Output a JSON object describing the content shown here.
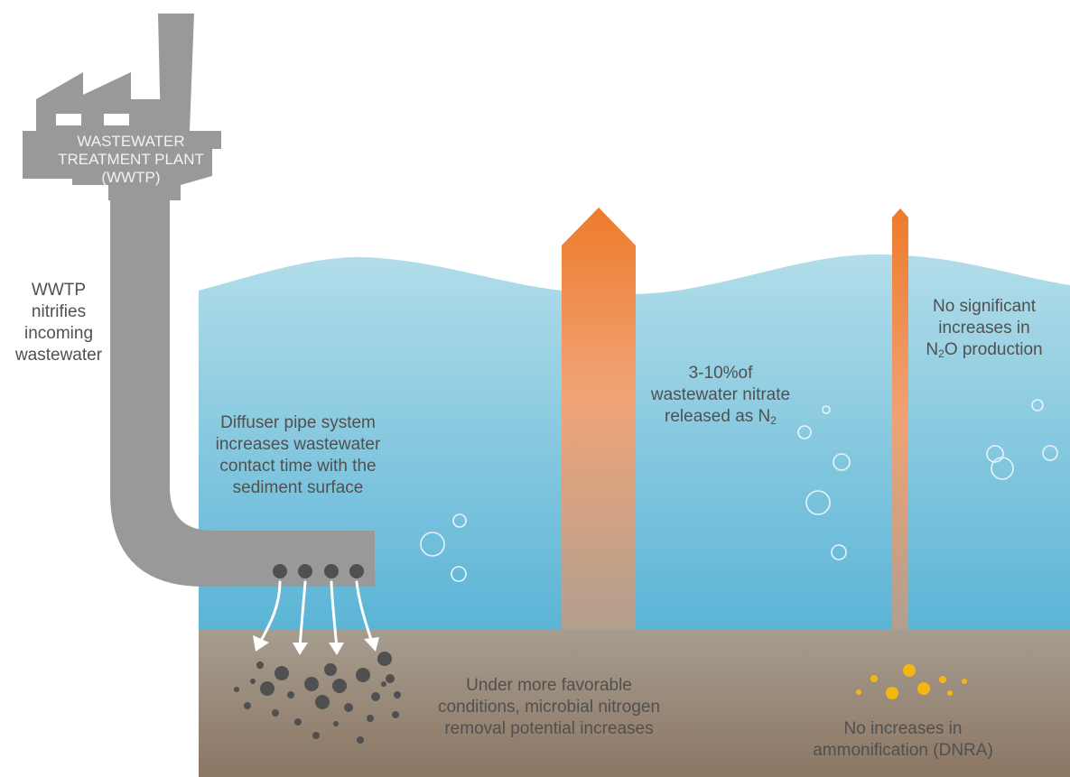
{
  "plant": {
    "lines": [
      "WASTEWATER",
      "TREATMENT PLANT",
      "(WWTP)"
    ]
  },
  "wwtp_note": {
    "lines": [
      "WWTP",
      "nitrifies",
      "incoming",
      "wastewater"
    ]
  },
  "diffuser_note": {
    "lines": [
      "Diffuser pipe system",
      "increases wastewater",
      "contact time with the",
      "sediment surface"
    ]
  },
  "n2_note": {
    "line1": "3-10%of",
    "line2": "wastewater nitrate",
    "line3_prefix": "released as N",
    "line3_sub": "2"
  },
  "n2o_note": {
    "line1": "No significant",
    "line2": "increases in",
    "line3_prefix": "N",
    "line3_sub": "2",
    "line3_suffix": "O production"
  },
  "sediment_note": {
    "lines": [
      "Under more favorable",
      "conditions, microbial nitrogen",
      "removal potential increases"
    ]
  },
  "dnra_note": {
    "lines": [
      "No increases in",
      "ammonification (DNRA)"
    ]
  },
  "colors": {
    "water_top": "#a9d9e8",
    "water_bottom": "#5fb5d6",
    "sediment_top": "#a49a8b",
    "sediment_bottom": "#8f7a68",
    "plant_grey": "#9a9a9a",
    "arrow_top": "#ee7d2f",
    "arrow_mid": "#f0a779",
    "arrow_bottom": "#b4a08f",
    "particle_dark": "#505050",
    "particle_gold": "#f5b60f",
    "text_dark": "#505050",
    "text_light": "#f2f2f2"
  }
}
